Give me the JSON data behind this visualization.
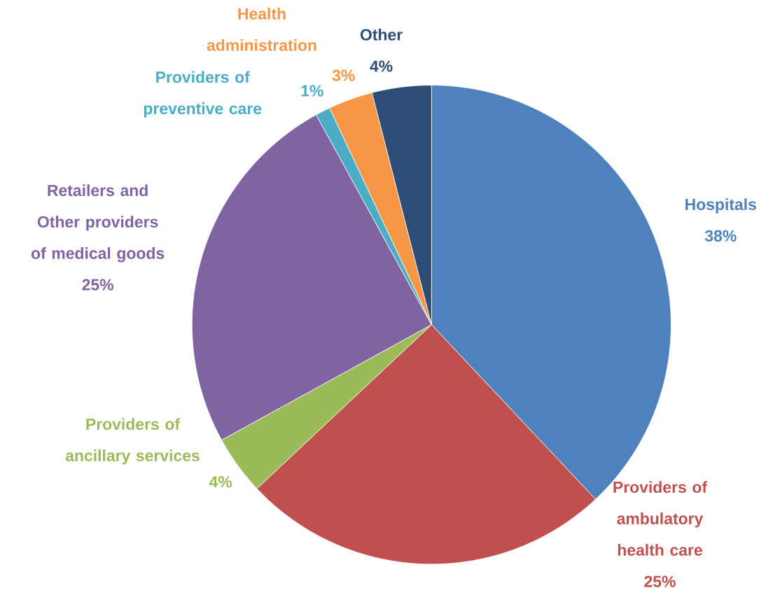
{
  "chart_data": {
    "type": "pie",
    "categories": [
      "Hospitals",
      "Providers of ambulatory health care",
      "Providers of ancillary services",
      "Retailers and Other providers of medical goods",
      "Providers of preventive care",
      "Health administration",
      "Other"
    ],
    "values": [
      38,
      25,
      4,
      25,
      1,
      3,
      4
    ],
    "value_labels": [
      "38%",
      "25%",
      "4%",
      "25%",
      "1%",
      "3%",
      "4%"
    ],
    "colors": [
      "#4f81bd",
      "#c0504d",
      "#9bbb59",
      "#8064a2",
      "#4bacc6",
      "#f79646",
      "#2c4d75"
    ]
  }
}
